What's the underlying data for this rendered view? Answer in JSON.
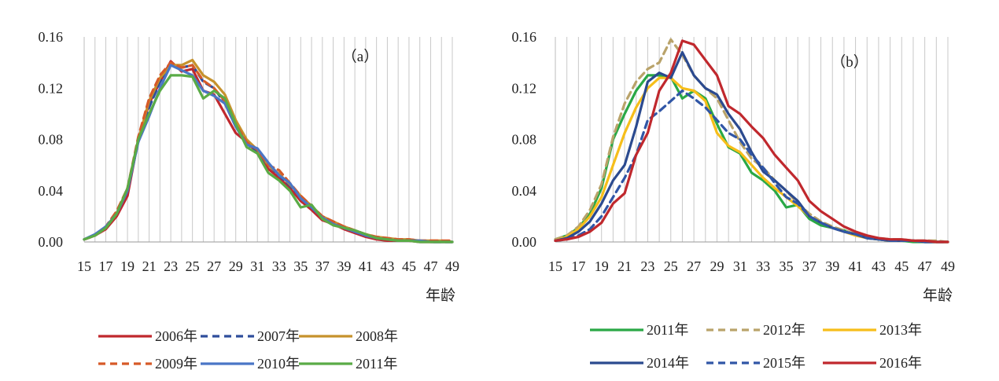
{
  "chart_data": [
    {
      "type": "line",
      "annotation": "（a）",
      "xlabel": "年龄",
      "ylabel": "",
      "xlim": [
        15,
        49
      ],
      "ylim": [
        0,
        0.16
      ],
      "yticks": [
        "0.00",
        "0.04",
        "0.08",
        "0.12",
        "0.16"
      ],
      "xticks": [
        "15",
        "17",
        "19",
        "21",
        "23",
        "25",
        "27",
        "29",
        "31",
        "33",
        "35",
        "37",
        "39",
        "41",
        "43",
        "45",
        "47",
        "49"
      ],
      "grid": "vertical",
      "legend_position": "bottom",
      "x": [
        15,
        16,
        17,
        18,
        19,
        20,
        21,
        22,
        23,
        24,
        25,
        26,
        27,
        28,
        29,
        30,
        31,
        32,
        33,
        34,
        35,
        36,
        37,
        38,
        39,
        40,
        41,
        42,
        43,
        44,
        45,
        46,
        47,
        48,
        49
      ],
      "series": [
        {
          "name": "2006年",
          "color": "#c0282d",
          "dash": "solid",
          "values": [
            0.002,
            0.005,
            0.01,
            0.02,
            0.036,
            0.08,
            0.108,
            0.125,
            0.141,
            0.133,
            0.135,
            0.118,
            0.115,
            0.1,
            0.085,
            0.078,
            0.07,
            0.057,
            0.05,
            0.042,
            0.032,
            0.025,
            0.017,
            0.014,
            0.01,
            0.007,
            0.004,
            0.002,
            0.001,
            0.001,
            0.001,
            0.0,
            0.0,
            0.0,
            0.0
          ]
        },
        {
          "name": "2007年",
          "color": "#2f4e9c",
          "dash": "dash",
          "values": [
            0.002,
            0.005,
            0.011,
            0.022,
            0.04,
            0.078,
            0.105,
            0.125,
            0.138,
            0.136,
            0.138,
            0.125,
            0.12,
            0.108,
            0.09,
            0.077,
            0.07,
            0.06,
            0.052,
            0.044,
            0.035,
            0.027,
            0.019,
            0.015,
            0.011,
            0.008,
            0.005,
            0.003,
            0.002,
            0.001,
            0.001,
            0.001,
            0.0,
            0.0,
            0.0
          ]
        },
        {
          "name": "2008年",
          "color": "#c6922c",
          "dash": "solid",
          "values": [
            0.002,
            0.005,
            0.011,
            0.022,
            0.042,
            0.08,
            0.11,
            0.128,
            0.138,
            0.138,
            0.142,
            0.13,
            0.125,
            0.115,
            0.095,
            0.08,
            0.072,
            0.06,
            0.053,
            0.045,
            0.036,
            0.028,
            0.02,
            0.016,
            0.012,
            0.009,
            0.006,
            0.004,
            0.003,
            0.002,
            0.002,
            0.001,
            0.001,
            0.001,
            0.0
          ]
        },
        {
          "name": "2009年",
          "color": "#d65a28",
          "dash": "dash",
          "values": [
            0.002,
            0.005,
            0.012,
            0.024,
            0.042,
            0.082,
            0.112,
            0.13,
            0.14,
            0.136,
            0.138,
            0.126,
            0.12,
            0.11,
            0.092,
            0.078,
            0.072,
            0.06,
            0.056,
            0.046,
            0.036,
            0.028,
            0.02,
            0.016,
            0.012,
            0.009,
            0.006,
            0.004,
            0.003,
            0.002,
            0.002,
            0.001,
            0.001,
            0.001,
            0.001
          ]
        },
        {
          "name": "2010年",
          "color": "#4a76c6",
          "dash": "solid",
          "values": [
            0.002,
            0.006,
            0.012,
            0.022,
            0.04,
            0.078,
            0.098,
            0.12,
            0.138,
            0.134,
            0.13,
            0.118,
            0.114,
            0.108,
            0.09,
            0.076,
            0.073,
            0.062,
            0.052,
            0.046,
            0.034,
            0.027,
            0.019,
            0.014,
            0.011,
            0.008,
            0.005,
            0.003,
            0.002,
            0.001,
            0.001,
            0.001,
            0.0,
            0.0,
            0.0
          ]
        },
        {
          "name": "2011年",
          "color": "#5aab46",
          "dash": "solid",
          "values": [
            0.002,
            0.005,
            0.011,
            0.022,
            0.042,
            0.08,
            0.1,
            0.118,
            0.13,
            0.13,
            0.129,
            0.112,
            0.118,
            0.112,
            0.092,
            0.074,
            0.069,
            0.054,
            0.048,
            0.04,
            0.027,
            0.029,
            0.018,
            0.013,
            0.011,
            0.009,
            0.006,
            0.003,
            0.002,
            0.001,
            0.001,
            0.0,
            0.0,
            0.0,
            0.0
          ]
        }
      ]
    },
    {
      "type": "line",
      "annotation": "（b）",
      "xlabel": "年龄",
      "ylabel": "",
      "xlim": [
        15,
        49
      ],
      "ylim": [
        0,
        0.16
      ],
      "yticks": [
        "0.00",
        "0.04",
        "0.08",
        "0.12",
        "0.16"
      ],
      "xticks": [
        "15",
        "17",
        "19",
        "21",
        "23",
        "25",
        "27",
        "29",
        "31",
        "33",
        "35",
        "37",
        "39",
        "41",
        "43",
        "45",
        "47",
        "49"
      ],
      "grid": "vertical",
      "legend_position": "bottom",
      "x": [
        15,
        16,
        17,
        18,
        19,
        20,
        21,
        22,
        23,
        24,
        25,
        26,
        27,
        28,
        29,
        30,
        31,
        32,
        33,
        34,
        35,
        36,
        37,
        38,
        39,
        40,
        41,
        42,
        43,
        44,
        45,
        46,
        47,
        48,
        49
      ],
      "series": [
        {
          "name": "2011年",
          "color": "#2aa846",
          "dash": "solid",
          "values": [
            0.002,
            0.005,
            0.011,
            0.022,
            0.042,
            0.08,
            0.1,
            0.118,
            0.13,
            0.13,
            0.129,
            0.112,
            0.118,
            0.112,
            0.092,
            0.074,
            0.069,
            0.054,
            0.048,
            0.04,
            0.027,
            0.029,
            0.018,
            0.013,
            0.011,
            0.009,
            0.006,
            0.003,
            0.002,
            0.001,
            0.001,
            0.0,
            0.0,
            0.0,
            0.0
          ]
        },
        {
          "name": "2012年",
          "color": "#b9a36a",
          "dash": "dash",
          "values": [
            0.002,
            0.005,
            0.012,
            0.025,
            0.045,
            0.082,
            0.108,
            0.125,
            0.135,
            0.14,
            0.158,
            0.146,
            0.13,
            0.12,
            0.112,
            0.095,
            0.078,
            0.065,
            0.058,
            0.048,
            0.04,
            0.03,
            0.022,
            0.016,
            0.012,
            0.009,
            0.006,
            0.004,
            0.003,
            0.002,
            0.002,
            0.001,
            0.001,
            0.001,
            0.0
          ]
        },
        {
          "name": "2013年",
          "color": "#f6be1a",
          "dash": "solid",
          "values": [
            0.001,
            0.004,
            0.01,
            0.02,
            0.035,
            0.06,
            0.085,
            0.105,
            0.12,
            0.128,
            0.128,
            0.12,
            0.118,
            0.11,
            0.085,
            0.075,
            0.07,
            0.06,
            0.05,
            0.042,
            0.035,
            0.028,
            0.02,
            0.015,
            0.011,
            0.008,
            0.005,
            0.003,
            0.002,
            0.001,
            0.001,
            0.001,
            0.0,
            0.0,
            0.0
          ]
        },
        {
          "name": "2014年",
          "color": "#2b4a8f",
          "dash": "solid",
          "values": [
            0.001,
            0.003,
            0.008,
            0.016,
            0.03,
            0.048,
            0.06,
            0.09,
            0.125,
            0.132,
            0.128,
            0.148,
            0.13,
            0.12,
            0.115,
            0.1,
            0.088,
            0.07,
            0.055,
            0.048,
            0.04,
            0.032,
            0.02,
            0.015,
            0.011,
            0.008,
            0.006,
            0.003,
            0.002,
            0.001,
            0.001,
            0.001,
            0.0,
            0.0,
            0.0
          ]
        },
        {
          "name": "2015年",
          "color": "#3056a6",
          "dash": "dash",
          "values": [
            0.001,
            0.002,
            0.005,
            0.01,
            0.02,
            0.035,
            0.05,
            0.068,
            0.095,
            0.102,
            0.11,
            0.118,
            0.112,
            0.105,
            0.095,
            0.085,
            0.08,
            0.068,
            0.058,
            0.046,
            0.035,
            0.03,
            0.02,
            0.015,
            0.011,
            0.008,
            0.006,
            0.003,
            0.002,
            0.001,
            0.001,
            0.001,
            0.0,
            0.0,
            0.0
          ]
        },
        {
          "name": "2016年",
          "color": "#c0282d",
          "dash": "solid",
          "values": [
            0.001,
            0.002,
            0.004,
            0.008,
            0.015,
            0.03,
            0.038,
            0.068,
            0.085,
            0.118,
            0.132,
            0.157,
            0.154,
            0.142,
            0.13,
            0.106,
            0.1,
            0.09,
            0.081,
            0.068,
            0.058,
            0.048,
            0.032,
            0.024,
            0.018,
            0.012,
            0.008,
            0.005,
            0.003,
            0.002,
            0.002,
            0.001,
            0.001,
            0.0,
            0.0
          ]
        }
      ]
    }
  ]
}
